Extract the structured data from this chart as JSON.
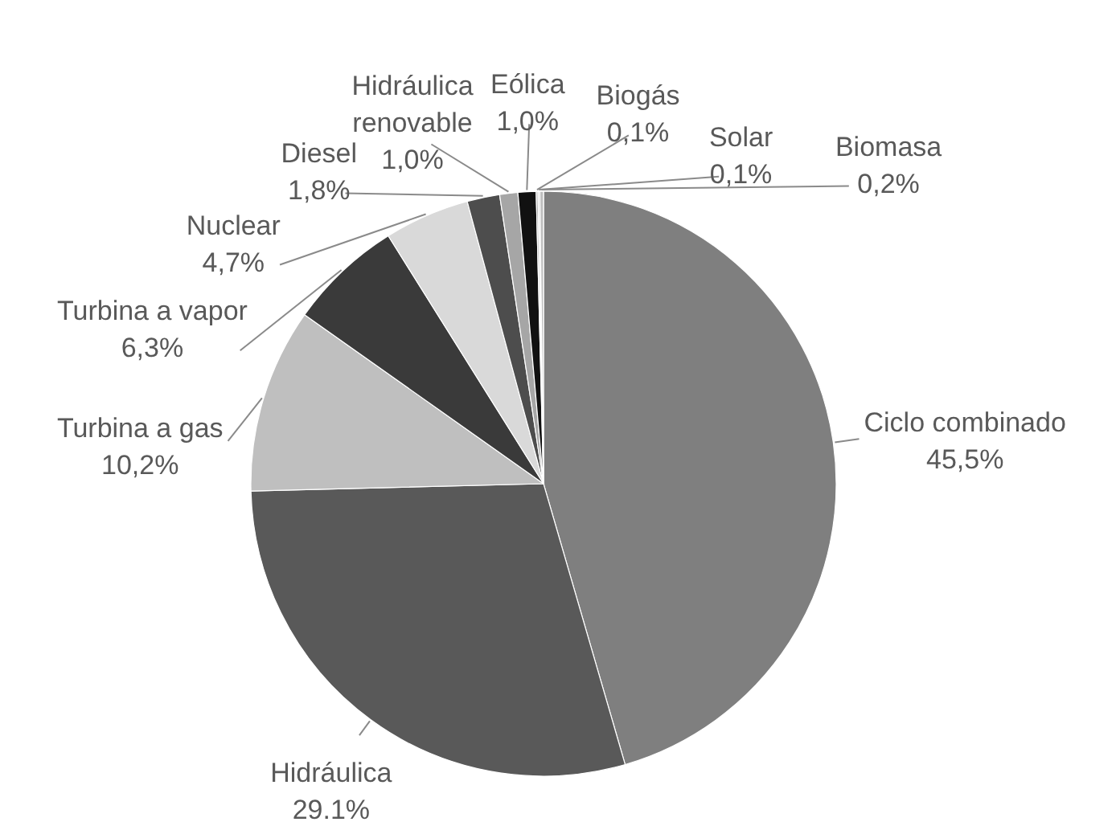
{
  "chart_data": {
    "type": "pie",
    "categories": [
      "Ciclo combinado",
      "Hidráulica",
      "Turbina a gas",
      "Turbina a vapor",
      "Nuclear",
      "Diesel",
      "Hidráulica renovable",
      "Eólica",
      "Biogás",
      "Solar",
      "Biomasa"
    ],
    "values": [
      45.5,
      29.1,
      10.2,
      6.3,
      4.7,
      1.8,
      1.0,
      1.0,
      0.1,
      0.1,
      0.2
    ],
    "colors": [
      "#7f7f7f",
      "#595959",
      "#bfbfbf",
      "#3a3a3a",
      "#d9d9d9",
      "#4d4d4d",
      "#a6a6a6",
      "#111111",
      "#a6a6a6",
      "#d9d9d9",
      "#bfbfbf"
    ],
    "value_labels": [
      "45,5%",
      "29.1%",
      "10,2%",
      "6,3%",
      "4,7%",
      "1,8%",
      "1,0%",
      "1,0%",
      "0,1%",
      "0,1%",
      "0,2%"
    ]
  }
}
